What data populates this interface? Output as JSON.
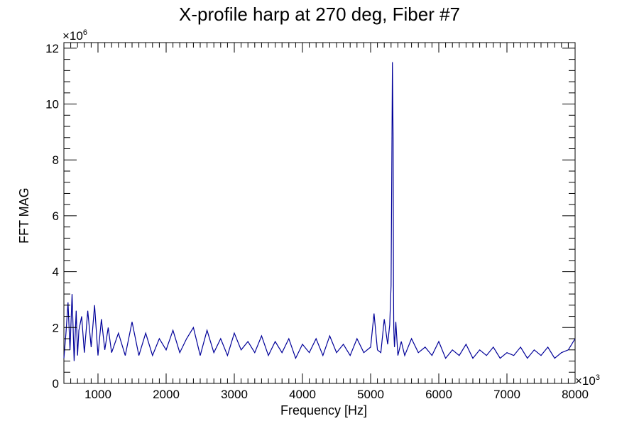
{
  "chart_data": {
    "type": "line",
    "title": "X-profile harp at 270 deg, Fiber #7",
    "xlabel": "Frequency [Hz]",
    "ylabel": "FFT MAG",
    "x_multiplier_label": "×10",
    "x_multiplier_exp": "3",
    "y_multiplier_label": "×10",
    "y_multiplier_exp": "6",
    "xlim": [
      500,
      8000
    ],
    "ylim": [
      0,
      12.2
    ],
    "x_ticks": [
      1000,
      2000,
      3000,
      4000,
      5000,
      6000,
      7000,
      8000
    ],
    "x_tick_labels": [
      "1000",
      "2000",
      "3000",
      "4000",
      "5000",
      "6000",
      "7000",
      "8000"
    ],
    "y_ticks": [
      0,
      2,
      4,
      6,
      8,
      10,
      12
    ],
    "y_tick_labels": [
      "0",
      "2",
      "4",
      "6",
      "8",
      "10",
      "12"
    ],
    "grid": false,
    "line_color": "#000099",
    "series": [
      {
        "x": [
          500,
          530,
          560,
          590,
          620,
          650,
          680,
          700,
          720,
          760,
          800,
          850,
          900,
          950,
          1000,
          1050,
          1100,
          1150,
          1200,
          1300,
          1400,
          1500,
          1600,
          1700,
          1800,
          1900,
          2000,
          2100,
          2200,
          2300,
          2400,
          2500,
          2600,
          2700,
          2800,
          2900,
          3000,
          3100,
          3200,
          3300,
          3400,
          3500,
          3600,
          3700,
          3800,
          3900,
          4000,
          4100,
          4200,
          4300,
          4400,
          4500,
          4600,
          4700,
          4800,
          4900,
          5000,
          5050,
          5100,
          5150,
          5200,
          5250,
          5280,
          5300,
          5310,
          5320,
          5330,
          5335,
          5340,
          5345,
          5350,
          5360,
          5370,
          5400,
          5450,
          5500,
          5600,
          5700,
          5800,
          5900,
          6000,
          6100,
          6200,
          6300,
          6400,
          6500,
          6600,
          6700,
          6800,
          6900,
          7000,
          7100,
          7200,
          7300,
          7400,
          7500,
          7600,
          7700,
          7800,
          7900,
          8000
        ],
        "y": [
          0.9,
          1.8,
          2.9,
          1.2,
          3.2,
          0.8,
          2.6,
          1.0,
          1.9,
          2.4,
          1.1,
          2.6,
          1.3,
          2.8,
          1.0,
          2.3,
          1.2,
          2.0,
          1.1,
          1.8,
          1.0,
          2.2,
          1.0,
          1.8,
          1.0,
          1.6,
          1.2,
          1.9,
          1.1,
          1.6,
          2.0,
          1.0,
          1.9,
          1.1,
          1.6,
          1.0,
          1.8,
          1.2,
          1.5,
          1.1,
          1.7,
          1.0,
          1.5,
          1.1,
          1.6,
          0.9,
          1.4,
          1.1,
          1.6,
          1.0,
          1.7,
          1.1,
          1.4,
          1.0,
          1.6,
          1.1,
          1.3,
          2.5,
          1.2,
          1.1,
          2.3,
          1.4,
          2.1,
          3.5,
          7.6,
          11.5,
          8.7,
          3.5,
          2.0,
          1.6,
          1.3,
          1.8,
          2.2,
          1.0,
          1.5,
          1.0,
          1.6,
          1.1,
          1.3,
          1.0,
          1.5,
          0.9,
          1.2,
          1.0,
          1.4,
          0.9,
          1.2,
          1.0,
          1.3,
          0.9,
          1.1,
          1.0,
          1.3,
          0.9,
          1.2,
          1.0,
          1.3,
          0.9,
          1.1,
          1.2,
          1.6
        ]
      }
    ]
  }
}
